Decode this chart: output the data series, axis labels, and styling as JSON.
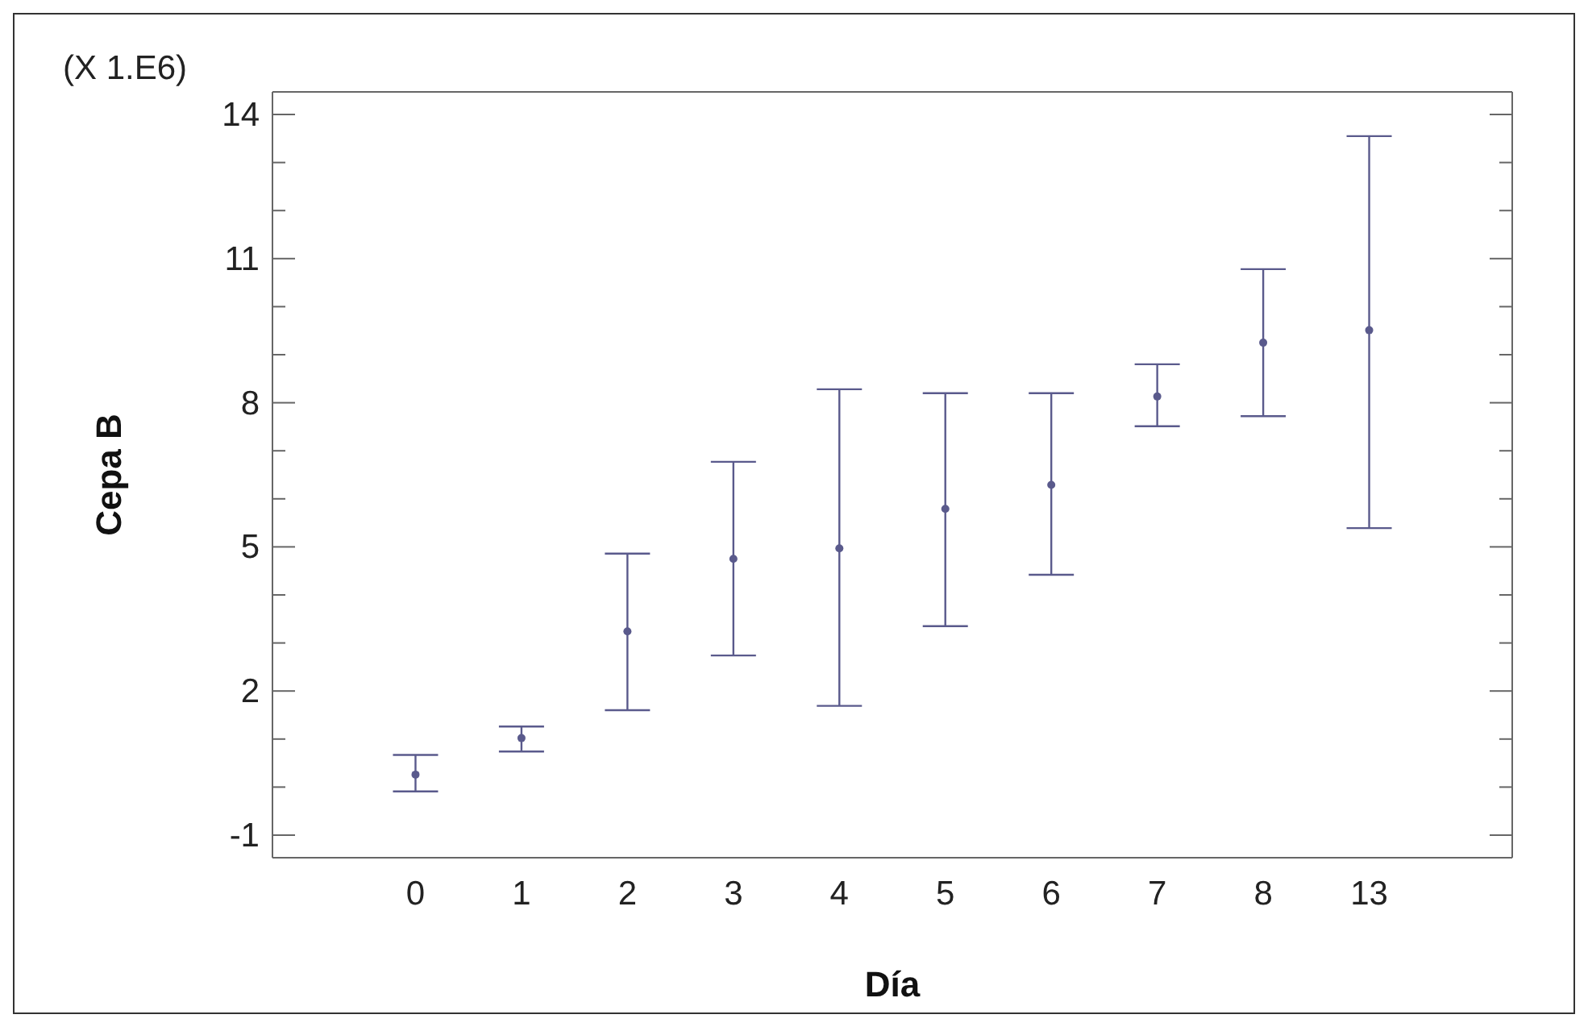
{
  "chart_data": {
    "type": "scatter",
    "xlabel": "Día",
    "ylabel": "Cepa B",
    "annotations": [
      "(X 1.E6)"
    ],
    "categories": [
      "0",
      "1",
      "2",
      "3",
      "4",
      "5",
      "6",
      "7",
      "8",
      "13"
    ],
    "series": [
      {
        "color": "#5a5a8c",
        "values": [
          0.26,
          1.02,
          3.24,
          4.75,
          4.97,
          5.79,
          6.29,
          8.13,
          9.25,
          9.51
        ],
        "errors": [
          [
            -0.09,
            0.67
          ],
          [
            0.74,
            1.26
          ],
          [
            1.6,
            4.86
          ],
          [
            2.74,
            6.77
          ],
          [
            1.69,
            8.28
          ],
          [
            3.35,
            8.2
          ],
          [
            4.42,
            8.2
          ],
          [
            7.51,
            8.8
          ],
          [
            7.72,
            10.78
          ],
          [
            5.39,
            13.55
          ]
        ]
      }
    ],
    "ylim": [
      -1.47,
      14.47
    ],
    "yticks": [
      -1,
      {
        "value": 0,
        "label": null
      },
      {
        "value": 1,
        "label": null
      },
      2,
      {
        "value": 3,
        "label": null
      },
      {
        "value": 4,
        "label": null
      },
      5,
      {
        "value": 6,
        "label": null
      },
      {
        "value": 7,
        "label": null
      },
      8,
      {
        "value": 9,
        "label": null
      },
      {
        "value": 10,
        "label": null
      },
      11,
      {
        "value": 12,
        "label": null
      },
      {
        "value": 13,
        "label": null
      },
      14
    ],
    "marker": "circle"
  }
}
